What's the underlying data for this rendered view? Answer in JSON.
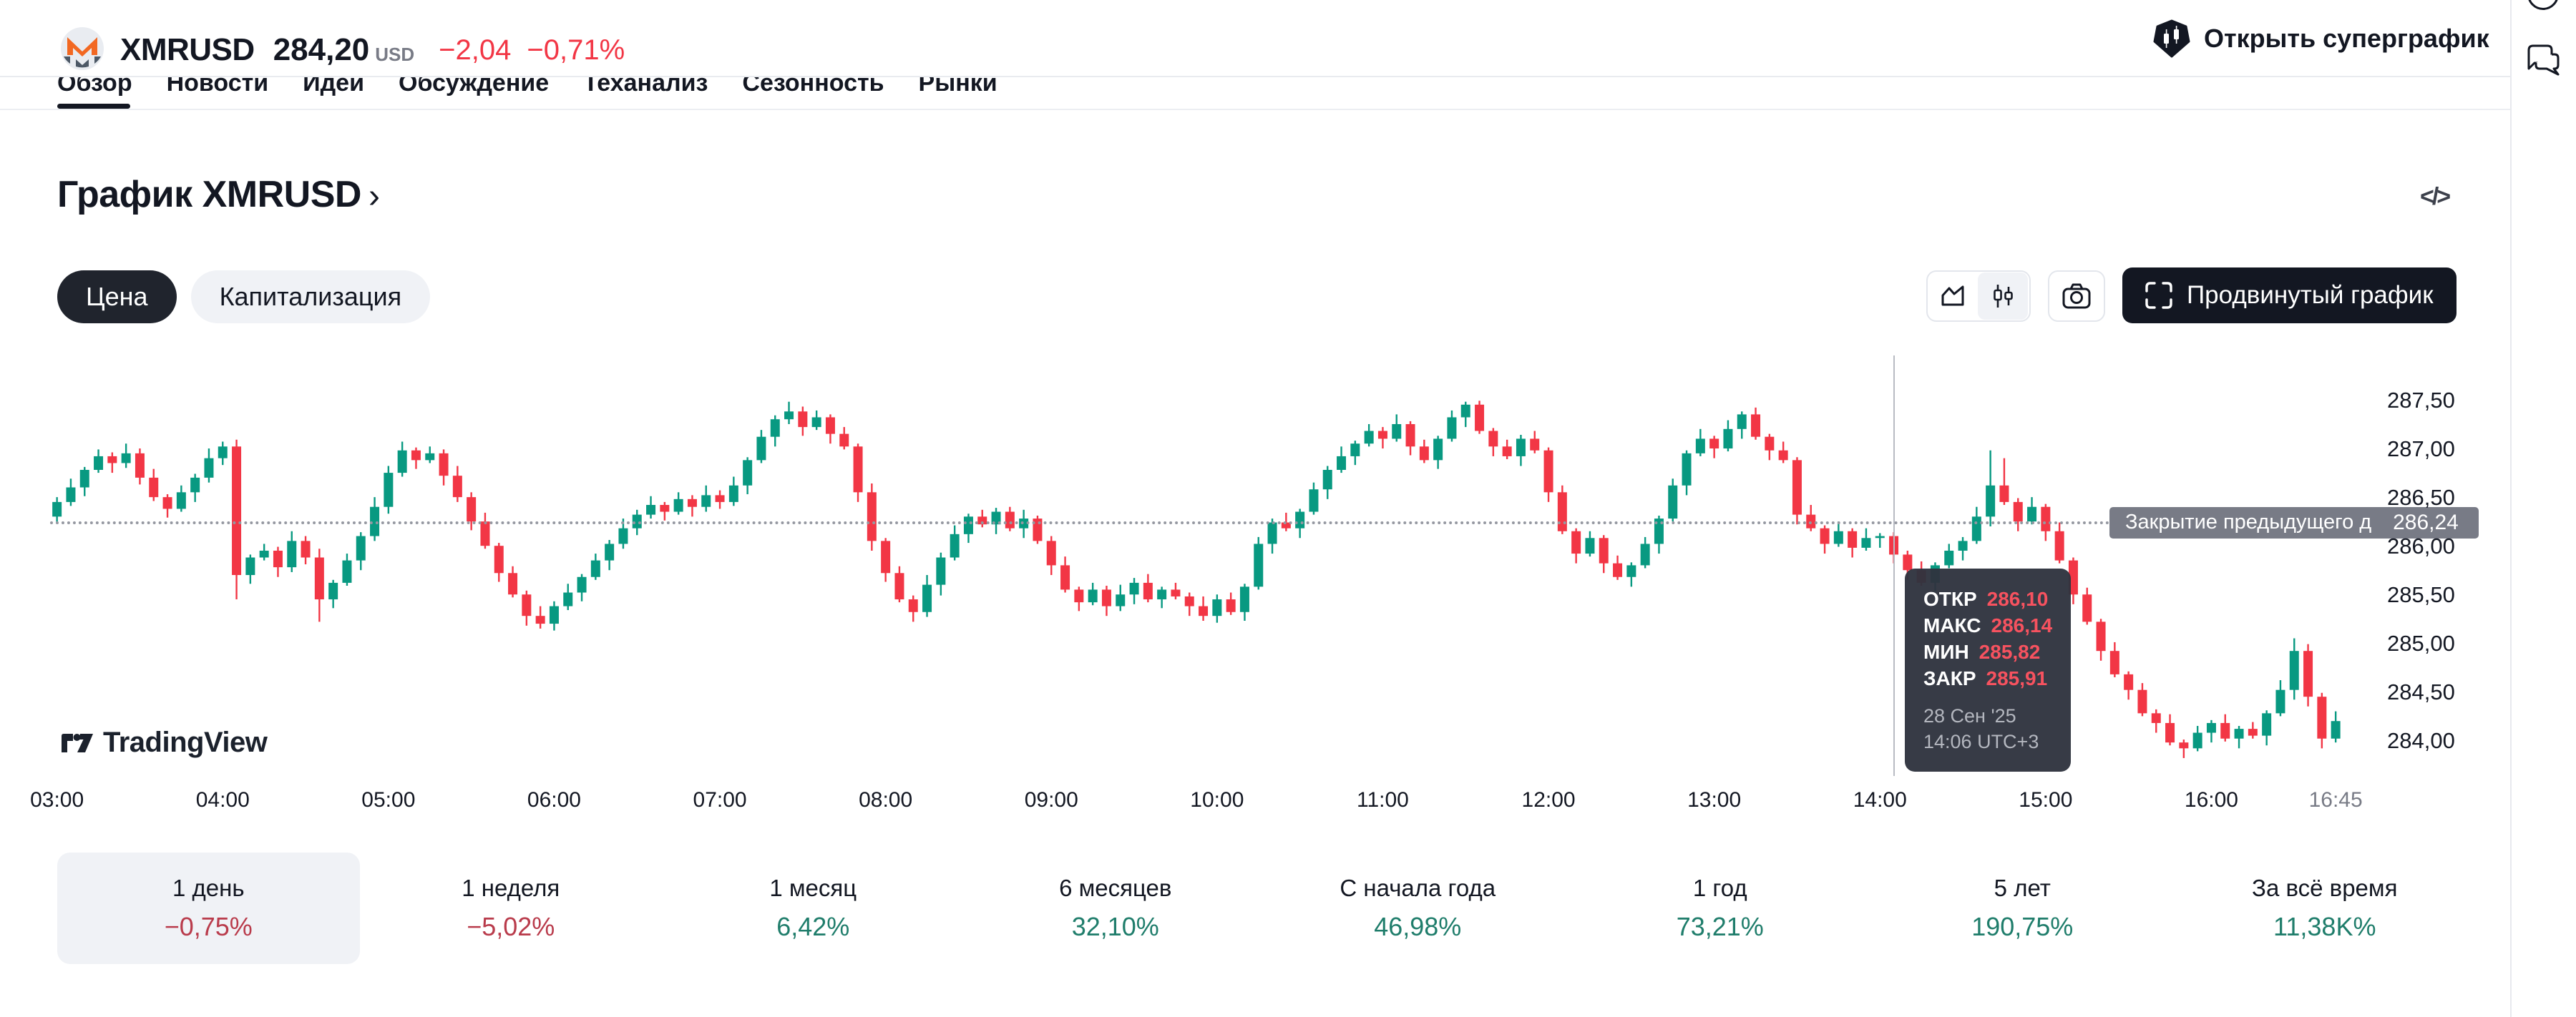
{
  "header": {
    "symbol": "XMRUSD",
    "price": "284,20",
    "currency": "USD",
    "change": "−2,04",
    "change_pct": "−0,71%",
    "supergraph_label": "Открыть суперграфик"
  },
  "tabs": {
    "items": [
      {
        "label": "Обзор",
        "active": true
      },
      {
        "label": "Новости",
        "active": false
      },
      {
        "label": "Идеи",
        "active": false
      },
      {
        "label": "Обсуждение",
        "active": false
      },
      {
        "label": "Теханализ",
        "active": false
      },
      {
        "label": "Сезонность",
        "active": false
      },
      {
        "label": "Рынки",
        "active": false
      }
    ]
  },
  "page": {
    "title": "График XMRUSD",
    "title_chevron": "›",
    "code_icon_glyph": "</>"
  },
  "controls": {
    "price_pill": "Цена",
    "cap_pill": "Капитализация",
    "advanced_label": "Продвинутый график"
  },
  "attribution": {
    "brand": "TradingView"
  },
  "chart_data": {
    "type": "candlestick",
    "symbol": "XMRUSD",
    "interval_minutes": 5,
    "start_time": "03:00",
    "timezone": "UTC+3",
    "colors": {
      "up": "#089981",
      "down": "#f23645"
    },
    "axis": {
      "max": 287.97,
      "min": 283.68
    },
    "price_ticks": [
      {
        "v": 287.5,
        "label": "287,50"
      },
      {
        "v": 287.0,
        "label": "287,00"
      },
      {
        "v": 286.5,
        "label": "286,50"
      },
      {
        "v": 286.0,
        "label": "286,00"
      },
      {
        "v": 285.5,
        "label": "285,50"
      },
      {
        "v": 285.0,
        "label": "285,00"
      },
      {
        "v": 284.5,
        "label": "284,50"
      },
      {
        "v": 284.0,
        "label": "284,00"
      }
    ],
    "time_labels": [
      {
        "label": "03:00",
        "i": 0
      },
      {
        "label": "04:00",
        "i": 12
      },
      {
        "label": "05:00",
        "i": 24
      },
      {
        "label": "06:00",
        "i": 36
      },
      {
        "label": "07:00",
        "i": 48
      },
      {
        "label": "08:00",
        "i": 60
      },
      {
        "label": "09:00",
        "i": 72
      },
      {
        "label": "10:00",
        "i": 84
      },
      {
        "label": "11:00",
        "i": 96
      },
      {
        "label": "12:00",
        "i": 108
      },
      {
        "label": "13:00",
        "i": 120
      },
      {
        "label": "14:00",
        "i": 132
      },
      {
        "label": "15:00",
        "i": 144
      },
      {
        "label": "16:00",
        "i": 156
      },
      {
        "label": "16:45",
        "i": 165,
        "minor": true
      }
    ],
    "prev_close": {
      "value": 286.24,
      "label": "Закрытие предыдущего дня",
      "display": "286,24"
    },
    "crosshair_index": 133,
    "tooltip": {
      "rows": [
        {
          "k": "ОТКР",
          "v": "286,10"
        },
        {
          "k": "МАКС",
          "v": "286,14"
        },
        {
          "k": "МИН",
          "v": "285,82"
        },
        {
          "k": "ЗАКР",
          "v": "285,91"
        }
      ],
      "date": "28 Сен '25",
      "time": "14:06 UTC+3"
    },
    "candles": [
      [
        286.3,
        286.5,
        286.23,
        286.45
      ],
      [
        286.45,
        286.69,
        286.41,
        286.6
      ],
      [
        286.6,
        286.81,
        286.51,
        286.78
      ],
      [
        286.78,
        286.99,
        286.75,
        286.92
      ],
      [
        286.92,
        286.96,
        286.75,
        286.85
      ],
      [
        286.85,
        287.05,
        286.8,
        286.95
      ],
      [
        286.95,
        287.0,
        286.63,
        286.7
      ],
      [
        286.7,
        286.79,
        286.46,
        286.5
      ],
      [
        286.5,
        286.53,
        286.29,
        286.38
      ],
      [
        286.38,
        286.62,
        286.35,
        286.55
      ],
      [
        286.55,
        286.74,
        286.45,
        286.7
      ],
      [
        286.7,
        287.0,
        286.65,
        286.9
      ],
      [
        286.9,
        287.07,
        286.83,
        287.02
      ],
      [
        287.02,
        287.09,
        285.45,
        285.7
      ],
      [
        285.7,
        285.91,
        285.61,
        285.88
      ],
      [
        285.88,
        286.02,
        285.85,
        285.95
      ],
      [
        285.95,
        285.99,
        285.68,
        285.78
      ],
      [
        285.78,
        286.15,
        285.73,
        286.05
      ],
      [
        286.05,
        286.1,
        285.81,
        285.88
      ],
      [
        285.88,
        285.97,
        285.22,
        285.45
      ],
      [
        285.45,
        285.65,
        285.36,
        285.62
      ],
      [
        285.62,
        285.92,
        285.59,
        285.85
      ],
      [
        285.85,
        286.14,
        285.75,
        286.1
      ],
      [
        286.1,
        286.5,
        286.05,
        286.4
      ],
      [
        286.4,
        286.82,
        286.33,
        286.75
      ],
      [
        286.75,
        287.07,
        286.71,
        286.98
      ],
      [
        286.98,
        287.01,
        286.79,
        286.88
      ],
      [
        286.88,
        287.02,
        286.85,
        286.95
      ],
      [
        286.95,
        286.99,
        286.62,
        286.72
      ],
      [
        286.72,
        286.82,
        286.45,
        286.5
      ],
      [
        286.5,
        286.55,
        286.16,
        286.25
      ],
      [
        286.25,
        286.34,
        285.97,
        286.0
      ],
      [
        286.0,
        286.03,
        285.63,
        285.72
      ],
      [
        285.72,
        285.79,
        285.47,
        285.5
      ],
      [
        285.5,
        285.54,
        285.18,
        285.28
      ],
      [
        285.28,
        285.38,
        285.15,
        285.2
      ],
      [
        285.2,
        285.43,
        285.13,
        285.38
      ],
      [
        285.38,
        285.61,
        285.34,
        285.52
      ],
      [
        285.52,
        285.71,
        285.43,
        285.68
      ],
      [
        285.68,
        285.92,
        285.65,
        285.85
      ],
      [
        285.85,
        286.06,
        285.75,
        286.02
      ],
      [
        286.02,
        286.28,
        285.97,
        286.18
      ],
      [
        286.18,
        286.37,
        286.11,
        286.32
      ],
      [
        286.32,
        286.51,
        286.28,
        286.42
      ],
      [
        286.42,
        286.45,
        286.26,
        286.35
      ],
      [
        286.35,
        286.55,
        286.32,
        286.48
      ],
      [
        286.48,
        286.52,
        286.3,
        286.4
      ],
      [
        286.4,
        286.62,
        286.35,
        286.52
      ],
      [
        286.52,
        286.57,
        286.38,
        286.45
      ],
      [
        286.45,
        286.71,
        286.41,
        286.62
      ],
      [
        286.62,
        286.91,
        286.53,
        286.88
      ],
      [
        286.88,
        287.19,
        286.85,
        287.12
      ],
      [
        287.12,
        287.34,
        287.02,
        287.3
      ],
      [
        287.3,
        287.48,
        287.25,
        287.38
      ],
      [
        287.38,
        287.43,
        287.13,
        287.22
      ],
      [
        287.22,
        287.39,
        287.19,
        287.32
      ],
      [
        287.32,
        287.35,
        287.05,
        287.15
      ],
      [
        287.15,
        287.22,
        286.99,
        287.02
      ],
      [
        287.02,
        287.05,
        286.45,
        286.55
      ],
      [
        286.55,
        286.64,
        285.95,
        286.05
      ],
      [
        286.05,
        286.08,
        285.63,
        285.72
      ],
      [
        285.72,
        285.79,
        285.42,
        285.45
      ],
      [
        285.45,
        285.49,
        285.22,
        285.32
      ],
      [
        285.32,
        285.7,
        285.27,
        285.6
      ],
      [
        285.6,
        285.93,
        285.49,
        285.88
      ],
      [
        285.88,
        286.21,
        285.85,
        286.12
      ],
      [
        286.12,
        286.33,
        286.03,
        286.3
      ],
      [
        286.3,
        286.37,
        286.19,
        286.22
      ],
      [
        286.22,
        286.39,
        286.12,
        286.35
      ],
      [
        286.35,
        286.4,
        286.15,
        286.18
      ],
      [
        286.18,
        286.37,
        286.08,
        286.28
      ],
      [
        286.28,
        286.31,
        286.02,
        286.05
      ],
      [
        286.05,
        286.1,
        285.7,
        285.8
      ],
      [
        285.8,
        285.89,
        285.52,
        285.55
      ],
      [
        285.55,
        285.58,
        285.33,
        285.42
      ],
      [
        285.42,
        285.62,
        285.39,
        285.55
      ],
      [
        285.55,
        285.59,
        285.28,
        285.38
      ],
      [
        285.38,
        285.6,
        285.33,
        285.5
      ],
      [
        285.5,
        285.67,
        285.4,
        285.62
      ],
      [
        285.62,
        285.71,
        285.42,
        285.45
      ],
      [
        285.45,
        285.58,
        285.36,
        285.55
      ],
      [
        285.55,
        285.62,
        285.45,
        285.48
      ],
      [
        285.48,
        285.52,
        285.28,
        285.38
      ],
      [
        285.38,
        285.48,
        285.23,
        285.28
      ],
      [
        285.28,
        285.5,
        285.21,
        285.45
      ],
      [
        285.45,
        285.52,
        285.29,
        285.32
      ],
      [
        285.32,
        285.61,
        285.23,
        285.58
      ],
      [
        285.58,
        286.09,
        285.55,
        286.02
      ],
      [
        286.02,
        286.28,
        285.92,
        286.24
      ],
      [
        286.24,
        286.34,
        286.15,
        286.18
      ],
      [
        286.18,
        286.38,
        286.08,
        286.35
      ],
      [
        286.35,
        286.65,
        286.32,
        286.58
      ],
      [
        286.58,
        286.82,
        286.48,
        286.78
      ],
      [
        286.78,
        287.02,
        286.75,
        286.92
      ],
      [
        286.92,
        287.08,
        286.83,
        287.05
      ],
      [
        287.05,
        287.25,
        287.02,
        287.18
      ],
      [
        287.18,
        287.22,
        287.0,
        287.1
      ],
      [
        287.1,
        287.35,
        287.07,
        287.25
      ],
      [
        287.25,
        287.28,
        286.93,
        287.02
      ],
      [
        287.02,
        287.09,
        286.85,
        286.88
      ],
      [
        286.88,
        287.13,
        286.79,
        287.1
      ],
      [
        287.1,
        287.39,
        287.07,
        287.32
      ],
      [
        287.32,
        287.48,
        287.22,
        287.45
      ],
      [
        287.45,
        287.49,
        287.15,
        287.18
      ],
      [
        287.18,
        287.21,
        286.92,
        287.02
      ],
      [
        287.02,
        287.09,
        286.89,
        286.92
      ],
      [
        286.92,
        287.14,
        286.82,
        287.1
      ],
      [
        287.1,
        287.18,
        286.95,
        286.98
      ],
      [
        286.98,
        287.01,
        286.45,
        286.55
      ],
      [
        286.55,
        286.62,
        286.12,
        286.15
      ],
      [
        286.15,
        286.18,
        285.82,
        285.92
      ],
      [
        285.92,
        286.15,
        285.89,
        286.08
      ],
      [
        286.08,
        286.11,
        285.72,
        285.82
      ],
      [
        285.82,
        285.9,
        285.65,
        285.68
      ],
      [
        285.68,
        285.83,
        285.58,
        285.8
      ],
      [
        285.8,
        286.09,
        285.77,
        286.02
      ],
      [
        286.02,
        286.31,
        285.92,
        286.28
      ],
      [
        286.28,
        286.69,
        286.25,
        286.62
      ],
      [
        286.62,
        286.98,
        286.52,
        286.95
      ],
      [
        286.95,
        287.2,
        286.92,
        287.1
      ],
      [
        287.1,
        287.13,
        286.9,
        287.0
      ],
      [
        287.0,
        287.29,
        286.97,
        287.2
      ],
      [
        287.2,
        287.38,
        287.1,
        287.35
      ],
      [
        287.35,
        287.42,
        287.09,
        287.12
      ],
      [
        287.12,
        287.15,
        286.88,
        286.98
      ],
      [
        286.98,
        287.07,
        286.85,
        286.88
      ],
      [
        286.88,
        286.91,
        286.22,
        286.32
      ],
      [
        286.32,
        286.42,
        286.15,
        286.18
      ],
      [
        286.18,
        286.21,
        285.92,
        286.02
      ],
      [
        286.02,
        286.25,
        285.99,
        286.15
      ],
      [
        286.15,
        286.18,
        285.88,
        285.98
      ],
      [
        285.98,
        286.18,
        285.95,
        286.08
      ],
      [
        286.08,
        286.13,
        285.98,
        286.1
      ],
      [
        286.1,
        286.14,
        285.82,
        285.91
      ],
      [
        285.91,
        285.95,
        285.65,
        285.75
      ],
      [
        285.75,
        285.84,
        285.59,
        285.62
      ],
      [
        285.62,
        285.83,
        285.53,
        285.8
      ],
      [
        285.8,
        286.02,
        285.77,
        285.95
      ],
      [
        285.95,
        286.09,
        285.85,
        286.05
      ],
      [
        286.05,
        286.4,
        286.02,
        286.3
      ],
      [
        286.3,
        286.98,
        286.2,
        286.62
      ],
      [
        286.62,
        286.9,
        286.42,
        286.45
      ],
      [
        286.45,
        286.49,
        286.15,
        286.25
      ],
      [
        286.25,
        286.5,
        286.22,
        286.4
      ],
      [
        286.4,
        286.43,
        286.05,
        286.15
      ],
      [
        286.15,
        286.24,
        285.82,
        285.85
      ],
      [
        285.85,
        285.88,
        285.4,
        285.5
      ],
      [
        285.5,
        285.57,
        285.19,
        285.22
      ],
      [
        285.22,
        285.25,
        284.82,
        284.92
      ],
      [
        284.92,
        285.01,
        284.65,
        284.68
      ],
      [
        284.68,
        284.71,
        284.42,
        284.52
      ],
      [
        284.52,
        284.59,
        284.25,
        284.28
      ],
      [
        284.28,
        284.32,
        284.08,
        284.18
      ],
      [
        284.18,
        284.27,
        283.95,
        283.98
      ],
      [
        283.98,
        284.01,
        283.82,
        283.92
      ],
      [
        283.92,
        284.15,
        283.89,
        284.08
      ],
      [
        284.08,
        284.21,
        283.98,
        284.18
      ],
      [
        284.18,
        284.27,
        283.99,
        284.02
      ],
      [
        284.02,
        284.15,
        283.92,
        284.12
      ],
      [
        284.12,
        284.19,
        284.02,
        284.05
      ],
      [
        284.05,
        284.31,
        283.95,
        284.28
      ],
      [
        284.28,
        284.62,
        284.25,
        284.52
      ],
      [
        284.52,
        285.05,
        284.42,
        284.92
      ],
      [
        284.92,
        284.99,
        284.35,
        284.45
      ],
      [
        284.45,
        284.49,
        283.92,
        284.02
      ],
      [
        284.02,
        284.3,
        283.98,
        284.2
      ]
    ]
  },
  "stats": {
    "items": [
      {
        "label": "1 день",
        "value": "−0,75%",
        "dir": "down",
        "selected": true
      },
      {
        "label": "1 неделя",
        "value": "−5,02%",
        "dir": "down",
        "selected": false
      },
      {
        "label": "1 месяц",
        "value": "6,42%",
        "dir": "up",
        "selected": false
      },
      {
        "label": "6 месяцев",
        "value": "32,10%",
        "dir": "up",
        "selected": false
      },
      {
        "label": "С начала года",
        "value": "46,98%",
        "dir": "up",
        "selected": false
      },
      {
        "label": "1 год",
        "value": "73,21%",
        "dir": "up",
        "selected": false
      },
      {
        "label": "5 лет",
        "value": "190,75%",
        "dir": "up",
        "selected": false
      },
      {
        "label": "За всё время",
        "value": "11,38K%",
        "dir": "up",
        "selected": false
      }
    ]
  }
}
